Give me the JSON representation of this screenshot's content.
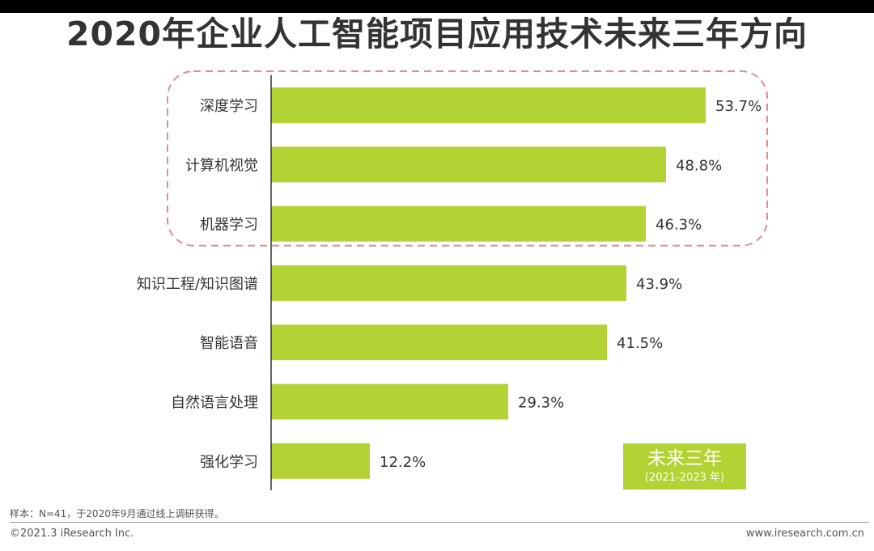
{
  "title": "2020年企业人工智能项目应用技术未来三年方向",
  "badge": {
    "line1": "未来三年",
    "line2": "(2021-2023 年)",
    "color": "#b3d334"
  },
  "footer": {
    "note": "样本：N=41，于2020年9月通过线上调研获得。",
    "copyright": "©2021.3 iResearch Inc.",
    "website": "www.iresearch.com.cn"
  },
  "chart_data": {
    "type": "bar",
    "orientation": "horizontal",
    "title": "2020年企业人工智能项目应用技术未来三年方向",
    "categories": [
      "深度学习",
      "计算机视觉",
      "机器学习",
      "知识工程/知识图谱",
      "智能语音",
      "自然语言处理",
      "强化学习"
    ],
    "values": [
      53.7,
      48.8,
      46.3,
      43.9,
      41.5,
      29.3,
      12.2
    ],
    "value_labels": [
      "53.7%",
      "48.8%",
      "46.3%",
      "43.9%",
      "41.5%",
      "29.3%",
      "12.2%"
    ],
    "unit": "%",
    "xlim": [
      0,
      60
    ],
    "bar_color": "#b3d334",
    "highlight_color": "#e58a8f",
    "highlighted_categories": [
      "深度学习",
      "计算机视觉",
      "机器学习"
    ],
    "grid": false,
    "legend": "none"
  }
}
